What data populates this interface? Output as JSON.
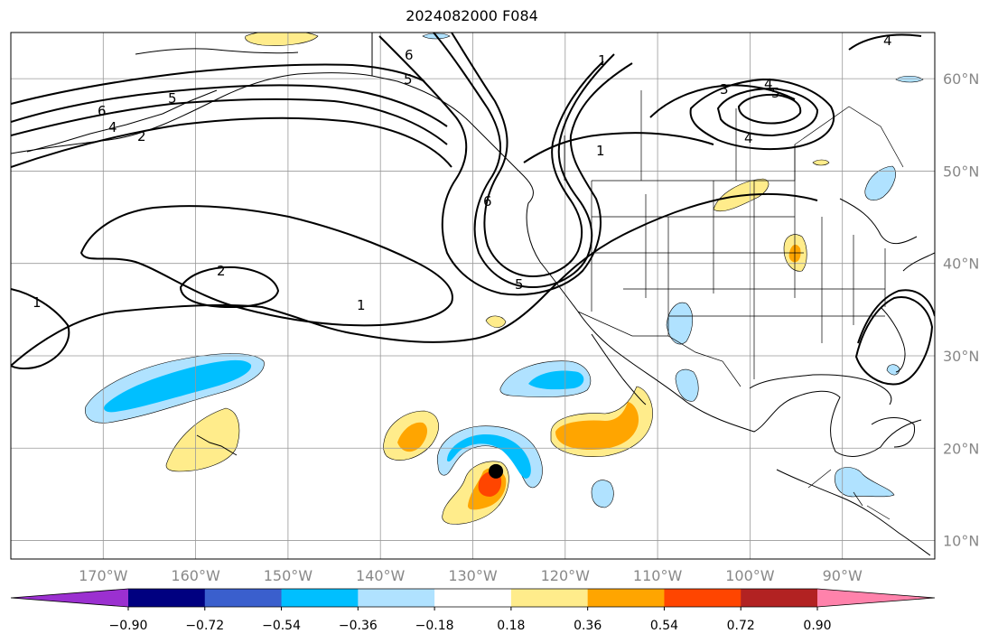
{
  "title": "2024082000 F084",
  "map": {
    "lon_min": -180,
    "lon_max": -80,
    "lat_min": 8,
    "lat_max": 65,
    "lon_ticks": [
      "170°W",
      "160°W",
      "150°W",
      "140°W",
      "130°W",
      "120°W",
      "110°W",
      "100°W",
      "90°W"
    ],
    "lat_ticks": [
      "60°N",
      "50°N",
      "40°N",
      "30°N",
      "20°N",
      "10°N"
    ],
    "gridlines": true
  },
  "colorbar": {
    "tick_labels": [
      "−0.90",
      "−0.72",
      "−0.54",
      "−0.36",
      "−0.18",
      "0.18",
      "0.36",
      "0.54",
      "0.72",
      "0.90"
    ],
    "colors": [
      "#9b30d0",
      "#000080",
      "#3a5fcd",
      "#00bfff",
      "#b0e2ff",
      "#ffffff",
      "#ffec8b",
      "#ffa500",
      "#ff4500",
      "#b22222",
      "#ff82ab"
    ],
    "extend": "both"
  },
  "contour_labels": [
    "1",
    "2",
    "1",
    "4",
    "5",
    "6",
    "2",
    "3",
    "4",
    "5",
    "4",
    "1",
    "6",
    "5",
    "6",
    "5",
    "1",
    "4"
  ],
  "marker": {
    "lon": -127.5,
    "lat": 17.5,
    "color": "#000000"
  }
}
